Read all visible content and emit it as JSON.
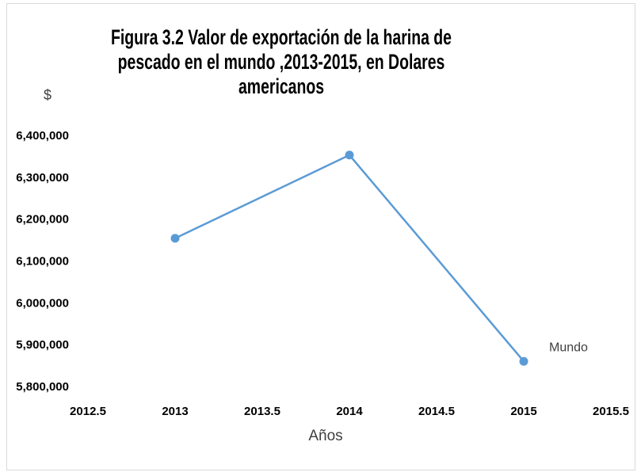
{
  "chart_data": {
    "type": "line",
    "title": "Figura 3.2 Valor de exportación de la harina de pescado en el mundo ,2013-2015, en Dolares americanos",
    "ylabel": "$",
    "xlabel": "Años",
    "x": [
      2013,
      2014,
      2015
    ],
    "series": [
      {
        "name": "Mundo",
        "color": "#5b9bd5",
        "values": [
          6156000,
          6355000,
          5862000
        ]
      }
    ],
    "xlim": [
      2012.5,
      2015.5
    ],
    "xticks": [
      2012.5,
      2013,
      2013.5,
      2014,
      2014.5,
      2015,
      2015.5
    ],
    "ylim": [
      5800000,
      6400000
    ],
    "yticks": [
      {
        "value": 5800000,
        "label": "5,800,000"
      },
      {
        "value": 5900000,
        "label": "5,900,000"
      },
      {
        "value": 6000000,
        "label": "6,000,000"
      },
      {
        "value": 6100000,
        "label": "6,100,000"
      },
      {
        "value": 6200000,
        "label": "6,200,000"
      },
      {
        "value": 6300000,
        "label": "6,300,000"
      },
      {
        "value": 6400000,
        "label": "6,400,000"
      }
    ],
    "grid": false
  }
}
